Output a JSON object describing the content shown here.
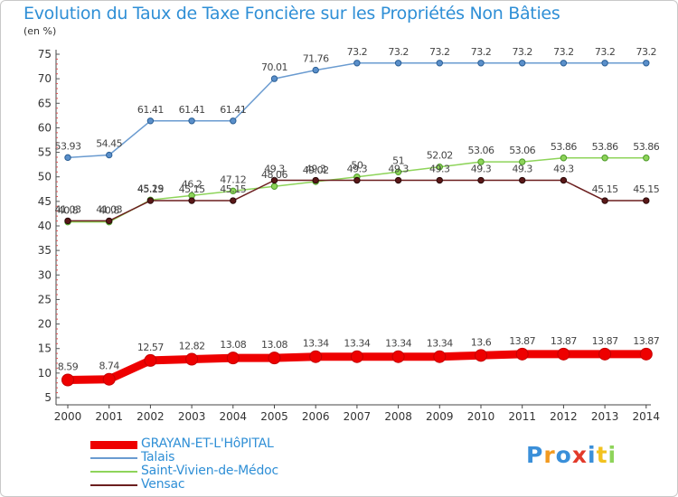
{
  "title": "Evolution du Taux de Taxe Foncière sur les Propriétés Non Bâties",
  "unit": "(en %)",
  "logo_text": "Proxiti",
  "chart_data": {
    "type": "line",
    "title": "Evolution du Taux de Taxe Foncière sur les Propriétés Non Bâties",
    "ylabel": "(en %)",
    "xlabel": "",
    "ylim": [
      5,
      75
    ],
    "yticks": [
      5,
      10,
      15,
      20,
      25,
      30,
      35,
      40,
      45,
      50,
      55,
      60,
      65,
      70,
      75
    ],
    "x": [
      "2000",
      "2001",
      "2002",
      "2003",
      "2004",
      "2005",
      "2006",
      "2007",
      "2008",
      "2009",
      "2010",
      "2011",
      "2012",
      "2013",
      "2014"
    ],
    "grid": false,
    "legend_position": "bottom-left",
    "series": [
      {
        "name": "GRAYAN-ET-L'HôPITAL",
        "color": "#ee0000",
        "values": [
          8.59,
          8.74,
          12.57,
          12.82,
          13.08,
          13.08,
          13.34,
          13.34,
          13.34,
          13.34,
          13.6,
          13.87,
          13.87,
          13.87,
          13.87
        ],
        "labels": [
          "8.59",
          "8.74",
          "12.57",
          "12.82",
          "13.08",
          "13.08",
          "13.34",
          "13.34",
          "13.34",
          "13.34",
          "13.6",
          "13.87",
          "13.87",
          "13.87",
          "13.87"
        ]
      },
      {
        "name": "Talais",
        "color": "#6a9bd0",
        "values": [
          53.93,
          54.45,
          61.41,
          61.41,
          61.41,
          70.01,
          71.76,
          73.2,
          73.2,
          73.2,
          73.2,
          73.2,
          73.2,
          73.2,
          73.2
        ],
        "labels": [
          "53.93",
          "54.45",
          "61.41",
          "61.41",
          "61.41",
          "70.01",
          "71.76",
          "73.2",
          "73.2",
          "73.2",
          "73.2",
          "73.2",
          "73.2",
          "73.2",
          "73.2"
        ]
      },
      {
        "name": "Saint-Vivien-de-Médoc",
        "color": "#8ed45a",
        "values": [
          40.8,
          40.8,
          45.29,
          46.2,
          47.12,
          48.06,
          49.02,
          50,
          51,
          52.02,
          53.06,
          53.06,
          53.86,
          53.86,
          53.86
        ],
        "labels": [
          "40.8",
          "40.8",
          "45.29",
          "46.2",
          "47.12",
          "48.06",
          "49.02",
          "50",
          "51",
          "52.02",
          "53.06",
          "53.06",
          "53.86",
          "53.86",
          "53.86"
        ]
      },
      {
        "name": "Vensac",
        "color": "#6b1e1e",
        "values": [
          41.03,
          41.03,
          45.15,
          45.15,
          45.15,
          49.3,
          49.3,
          49.3,
          49.3,
          49.3,
          49.3,
          49.3,
          49.3,
          45.15,
          45.15
        ],
        "labels": [
          "41.03",
          "41.03",
          "45.15",
          "45.15",
          "45.15",
          "49.3",
          "49.3",
          "49.3",
          "49.3",
          "49.3",
          "49.3",
          "49.3",
          "49.3",
          "45.15",
          "45.15"
        ]
      }
    ]
  }
}
